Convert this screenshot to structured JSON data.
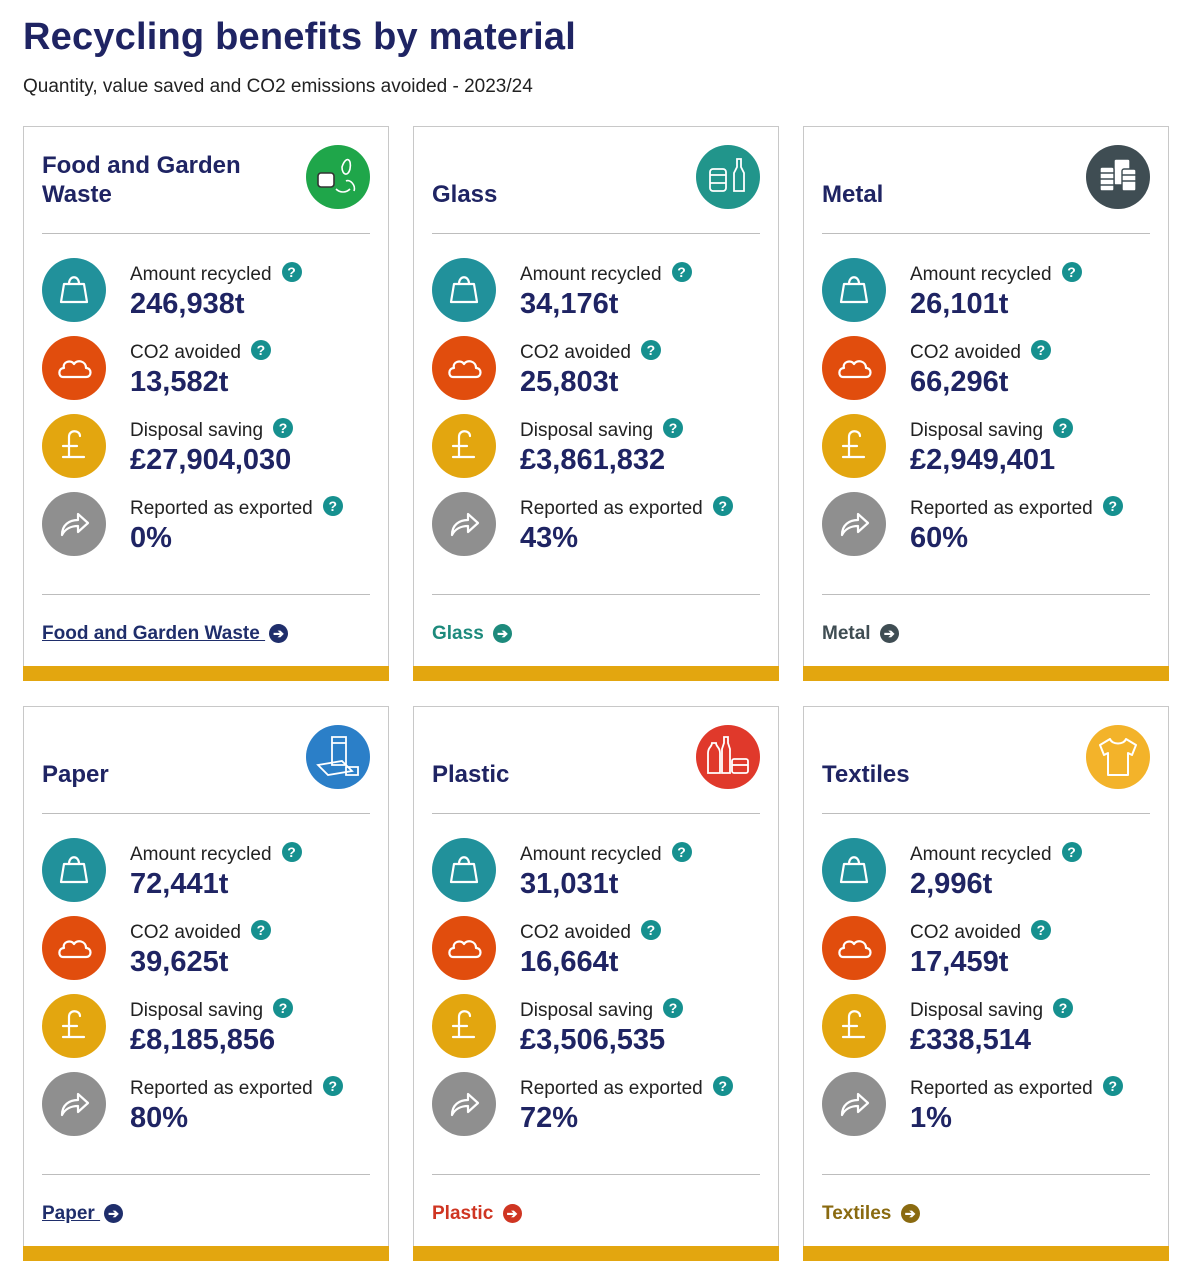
{
  "page": {
    "title": "Recycling benefits by material",
    "subtitle": "Quantity, value saved and CO2 emissions avoided - 2023/24"
  },
  "colors": {
    "navy": "#1f2463",
    "teal": "#21919b",
    "orange": "#e14d0d",
    "gold": "#e3a60f",
    "grey": "#8f8f8f",
    "help": "#16908f"
  },
  "stat_labels": {
    "amount": "Amount recycled",
    "co2": "CO2 avoided",
    "disposal": "Disposal saving",
    "exported": "Reported as exported",
    "help": "?",
    "arrow": "➔"
  },
  "cards": [
    {
      "title": "Food and Garden Waste",
      "icon": "food-garden-waste-icon",
      "badge_color": "#1fa64a",
      "amount": "246,938t",
      "co2": "13,582t",
      "disposal": "£27,904,030",
      "exported": "0%",
      "link": "Food and Garden Waste",
      "link_color": "#1f2e6b"
    },
    {
      "title": "Glass",
      "icon": "glass-jar-bottle-icon",
      "badge_color": "#21958b",
      "amount": "34,176t",
      "co2": "25,803t",
      "disposal": "£3,861,832",
      "exported": "43%",
      "link": "Glass",
      "link_color": "#1d8a7c"
    },
    {
      "title": "Metal",
      "icon": "metal-cans-icon",
      "badge_color": "#3f4d53",
      "amount": "26,101t",
      "co2": "66,296t",
      "disposal": "£2,949,401",
      "exported": "60%",
      "link": "Metal",
      "link_color": "#3f4d53"
    },
    {
      "title": "Paper",
      "icon": "paper-bag-icon",
      "badge_color": "#2b7fc8",
      "amount": "72,441t",
      "co2": "39,625t",
      "disposal": "£8,185,856",
      "exported": "80%",
      "link": "Paper",
      "link_color": "#1f2e6b"
    },
    {
      "title": "Plastic",
      "icon": "plastic-bottles-icon",
      "badge_color": "#e0392b",
      "amount": "31,031t",
      "co2": "16,664t",
      "disposal": "£3,506,535",
      "exported": "72%",
      "link": "Plastic",
      "link_color": "#cf3522"
    },
    {
      "title": "Textiles",
      "icon": "t-shirt-icon",
      "badge_color": "#f3b32a",
      "amount": "2,996t",
      "co2": "17,459t",
      "disposal": "£338,514",
      "exported": "1%",
      "link": "Textiles",
      "link_color": "#8a6a10"
    }
  ]
}
